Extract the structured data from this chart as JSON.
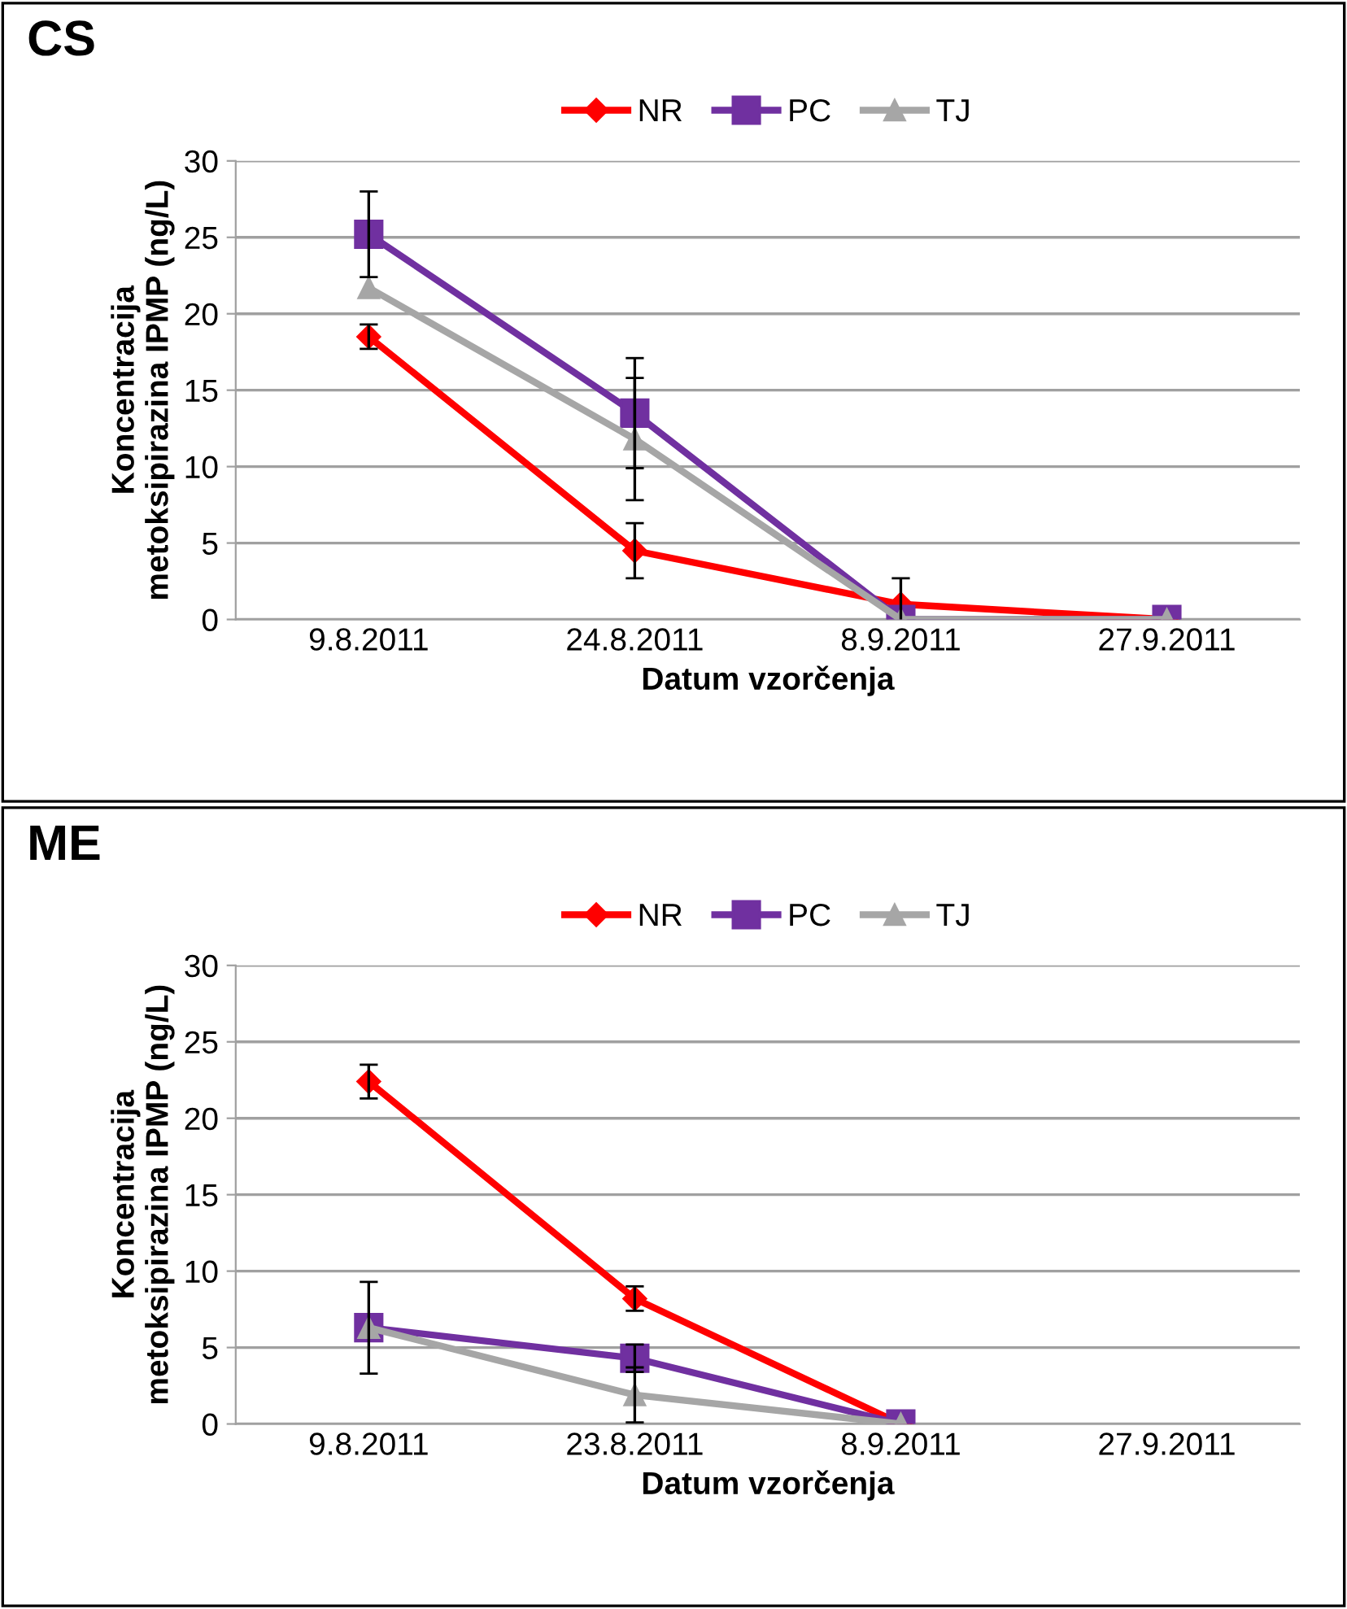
{
  "chart_data": [
    {
      "type": "line",
      "title": "CS",
      "xlabel": "Datum vzorčenja",
      "ylabel": "Koncentracija\nmetoksipirazina IPMP (ng/L)",
      "categories": [
        "9.8.2011",
        "24.8.2011",
        "8.9.2011",
        "27.9.2011"
      ],
      "ylim": [
        0,
        30
      ],
      "yticks": [
        0,
        5,
        10,
        15,
        20,
        25,
        30
      ],
      "grid": "y",
      "legend": "top",
      "series": [
        {
          "name": "NR",
          "color": "#ff0000",
          "marker": "diamond",
          "values": [
            18.5,
            4.5,
            1.0,
            0
          ],
          "errors": [
            0.8,
            1.8,
            1.7,
            null
          ]
        },
        {
          "name": "PC",
          "color": "#7030a0",
          "marker": "square",
          "values": [
            25.2,
            13.5,
            0,
            0
          ],
          "errors": [
            2.8,
            3.6,
            null,
            null
          ]
        },
        {
          "name": "TJ",
          "color": "#a6a6a6",
          "marker": "triangle",
          "values": [
            21.7,
            11.8,
            0,
            0
          ],
          "errors": [
            null,
            4.0,
            null,
            null
          ]
        }
      ]
    },
    {
      "type": "line",
      "title": "ME",
      "xlabel": "Datum vzorčenja",
      "ylabel": "Koncentracija\nmetoksipirazina IPMP (ng/L)",
      "categories": [
        "9.8.2011",
        "23.8.2011",
        "8.9.2011",
        "27.9.2011"
      ],
      "ylim": [
        0,
        30
      ],
      "yticks": [
        0,
        5,
        10,
        15,
        20,
        25,
        30
      ],
      "grid": "y",
      "legend": "top",
      "series": [
        {
          "name": "NR",
          "color": "#ff0000",
          "marker": "diamond",
          "values": [
            22.4,
            8.2,
            0,
            null
          ],
          "errors": [
            1.1,
            0.8,
            null,
            null
          ]
        },
        {
          "name": "PC",
          "color": "#7030a0",
          "marker": "square",
          "values": [
            6.3,
            4.3,
            0,
            null
          ],
          "errors": [
            3.0,
            0.9,
            null,
            null
          ]
        },
        {
          "name": "TJ",
          "color": "#a6a6a6",
          "marker": "triangle",
          "values": [
            6.3,
            1.9,
            0,
            null
          ],
          "errors": [
            null,
            1.8,
            null,
            null
          ]
        }
      ]
    }
  ]
}
